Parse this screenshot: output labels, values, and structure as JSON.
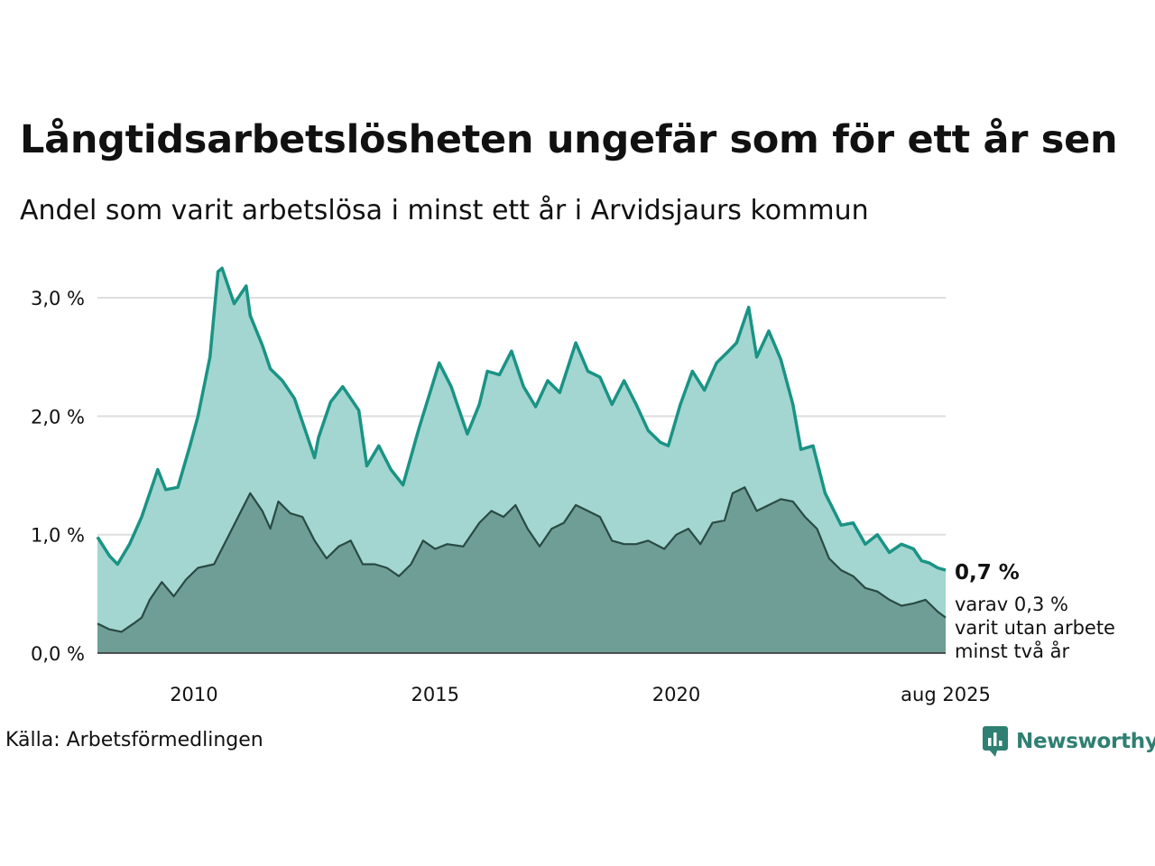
{
  "title": "Långtidsarbetslösheten ungefär som för ett år sen",
  "subtitle": "Andel som varit arbetslösa i minst ett år i Arvidsjaurs kommun",
  "source": "Källa: Arbetsförmedlingen",
  "logo": {
    "name": "Newsworthy",
    "icon": "chart-bubble-icon"
  },
  "colors": {
    "upper_line": "#1a9385",
    "upper_fill": "#a3d6d0",
    "lower_line": "#2a4a44",
    "lower_fill": "#6f9e96",
    "grid": "#dddddd",
    "logo": "#2f7f72"
  },
  "annotations": {
    "last_value": "0,7 %",
    "note_line1": "varav 0,3 %",
    "note_line2": "varit utan arbete",
    "note_line3": "minst två år"
  },
  "chart_data": {
    "type": "area",
    "title": "Långtidsarbetslösheten ungefär som för ett år sen",
    "subtitle": "Andel som varit arbetslösa i minst ett år i Arvidsjaurs kommun",
    "xlabel": "",
    "ylabel": "",
    "ylim": [
      0,
      3.3
    ],
    "xlim": [
      "2008-01",
      "2025-08"
    ],
    "grid": "horizontal",
    "legend": "none",
    "y_ticks": [
      {
        "value": 0,
        "label": "0,0 %"
      },
      {
        "value": 1,
        "label": "1,0 %"
      },
      {
        "value": 2,
        "label": "2,0 %"
      },
      {
        "value": 3,
        "label": "3,0 %"
      }
    ],
    "x_ticks": [
      {
        "value": "2010-01",
        "label": "2010"
      },
      {
        "value": "2015-01",
        "label": "2015"
      },
      {
        "value": "2020-01",
        "label": "2020"
      },
      {
        "value": "2025-08",
        "label": "aug 2025"
      }
    ],
    "series": [
      {
        "key": "min_ett_ar",
        "points": [
          [
            "2008-01",
            0.98
          ],
          [
            "2008-04",
            0.82
          ],
          [
            "2008-06",
            0.75
          ],
          [
            "2008-09",
            0.92
          ],
          [
            "2008-12",
            1.15
          ],
          [
            "2009-03",
            1.45
          ],
          [
            "2009-04",
            1.55
          ],
          [
            "2009-06",
            1.38
          ],
          [
            "2009-09",
            1.4
          ],
          [
            "2009-12",
            1.75
          ],
          [
            "2010-02",
            2.0
          ],
          [
            "2010-05",
            2.5
          ],
          [
            "2010-07",
            3.22
          ],
          [
            "2010-08",
            3.25
          ],
          [
            "2010-11",
            2.95
          ],
          [
            "2011-02",
            3.1
          ],
          [
            "2011-03",
            2.85
          ],
          [
            "2011-06",
            2.6
          ],
          [
            "2011-08",
            2.4
          ],
          [
            "2011-11",
            2.3
          ],
          [
            "2012-02",
            2.15
          ],
          [
            "2012-05",
            1.85
          ],
          [
            "2012-07",
            1.65
          ],
          [
            "2012-08",
            1.82
          ],
          [
            "2012-11",
            2.12
          ],
          [
            "2013-02",
            2.25
          ],
          [
            "2013-06",
            2.05
          ],
          [
            "2013-08",
            1.58
          ],
          [
            "2013-11",
            1.75
          ],
          [
            "2014-02",
            1.55
          ],
          [
            "2014-05",
            1.42
          ],
          [
            "2014-09",
            1.9
          ],
          [
            "2015-02",
            2.45
          ],
          [
            "2015-05",
            2.25
          ],
          [
            "2015-09",
            1.85
          ],
          [
            "2015-12",
            2.1
          ],
          [
            "2016-02",
            2.38
          ],
          [
            "2016-05",
            2.35
          ],
          [
            "2016-08",
            2.55
          ],
          [
            "2016-11",
            2.25
          ],
          [
            "2017-02",
            2.08
          ],
          [
            "2017-05",
            2.3
          ],
          [
            "2017-08",
            2.2
          ],
          [
            "2017-12",
            2.62
          ],
          [
            "2018-03",
            2.38
          ],
          [
            "2018-06",
            2.33
          ],
          [
            "2018-09",
            2.1
          ],
          [
            "2018-12",
            2.3
          ],
          [
            "2019-03",
            2.1
          ],
          [
            "2019-06",
            1.88
          ],
          [
            "2019-09",
            1.78
          ],
          [
            "2019-11",
            1.75
          ],
          [
            "2020-02",
            2.1
          ],
          [
            "2020-05",
            2.38
          ],
          [
            "2020-08",
            2.22
          ],
          [
            "2020-11",
            2.45
          ],
          [
            "2021-02",
            2.55
          ],
          [
            "2021-04",
            2.62
          ],
          [
            "2021-07",
            2.92
          ],
          [
            "2021-09",
            2.5
          ],
          [
            "2021-12",
            2.72
          ],
          [
            "2022-03",
            2.48
          ],
          [
            "2022-06",
            2.1
          ],
          [
            "2022-08",
            1.72
          ],
          [
            "2022-11",
            1.75
          ],
          [
            "2023-02",
            1.35
          ],
          [
            "2023-06",
            1.08
          ],
          [
            "2023-09",
            1.1
          ],
          [
            "2023-12",
            0.92
          ],
          [
            "2024-03",
            1.0
          ],
          [
            "2024-06",
            0.85
          ],
          [
            "2024-09",
            0.92
          ],
          [
            "2024-12",
            0.88
          ],
          [
            "2025-02",
            0.78
          ],
          [
            "2025-04",
            0.76
          ],
          [
            "2025-06",
            0.72
          ],
          [
            "2025-08",
            0.7
          ]
        ]
      },
      {
        "key": "minst_tva_ar",
        "points": [
          [
            "2008-01",
            0.25
          ],
          [
            "2008-04",
            0.2
          ],
          [
            "2008-07",
            0.18
          ],
          [
            "2008-10",
            0.25
          ],
          [
            "2008-12",
            0.3
          ],
          [
            "2009-02",
            0.45
          ],
          [
            "2009-05",
            0.6
          ],
          [
            "2009-08",
            0.48
          ],
          [
            "2009-11",
            0.62
          ],
          [
            "2010-02",
            0.72
          ],
          [
            "2010-06",
            0.75
          ],
          [
            "2010-09",
            0.95
          ],
          [
            "2010-12",
            1.15
          ],
          [
            "2011-03",
            1.35
          ],
          [
            "2011-06",
            1.2
          ],
          [
            "2011-08",
            1.05
          ],
          [
            "2011-10",
            1.28
          ],
          [
            "2012-01",
            1.18
          ],
          [
            "2012-04",
            1.15
          ],
          [
            "2012-07",
            0.95
          ],
          [
            "2012-10",
            0.8
          ],
          [
            "2013-01",
            0.9
          ],
          [
            "2013-04",
            0.95
          ],
          [
            "2013-07",
            0.75
          ],
          [
            "2013-10",
            0.75
          ],
          [
            "2014-01",
            0.72
          ],
          [
            "2014-04",
            0.65
          ],
          [
            "2014-07",
            0.75
          ],
          [
            "2014-10",
            0.95
          ],
          [
            "2015-01",
            0.88
          ],
          [
            "2015-04",
            0.92
          ],
          [
            "2015-08",
            0.9
          ],
          [
            "2015-12",
            1.1
          ],
          [
            "2016-03",
            1.2
          ],
          [
            "2016-06",
            1.15
          ],
          [
            "2016-09",
            1.25
          ],
          [
            "2016-12",
            1.05
          ],
          [
            "2017-03",
            0.9
          ],
          [
            "2017-06",
            1.05
          ],
          [
            "2017-09",
            1.1
          ],
          [
            "2017-12",
            1.25
          ],
          [
            "2018-03",
            1.2
          ],
          [
            "2018-06",
            1.15
          ],
          [
            "2018-09",
            0.95
          ],
          [
            "2018-12",
            0.92
          ],
          [
            "2019-03",
            0.92
          ],
          [
            "2019-06",
            0.95
          ],
          [
            "2019-10",
            0.88
          ],
          [
            "2020-01",
            1.0
          ],
          [
            "2020-04",
            1.05
          ],
          [
            "2020-07",
            0.92
          ],
          [
            "2020-10",
            1.1
          ],
          [
            "2021-01",
            1.12
          ],
          [
            "2021-03",
            1.35
          ],
          [
            "2021-06",
            1.4
          ],
          [
            "2021-09",
            1.2
          ],
          [
            "2021-12",
            1.25
          ],
          [
            "2022-03",
            1.3
          ],
          [
            "2022-06",
            1.28
          ],
          [
            "2022-09",
            1.15
          ],
          [
            "2022-12",
            1.05
          ],
          [
            "2023-03",
            0.8
          ],
          [
            "2023-06",
            0.7
          ],
          [
            "2023-09",
            0.65
          ],
          [
            "2023-12",
            0.55
          ],
          [
            "2024-03",
            0.52
          ],
          [
            "2024-06",
            0.45
          ],
          [
            "2024-09",
            0.4
          ],
          [
            "2024-12",
            0.42
          ],
          [
            "2025-03",
            0.45
          ],
          [
            "2025-06",
            0.35
          ],
          [
            "2025-08",
            0.3
          ]
        ]
      }
    ]
  }
}
